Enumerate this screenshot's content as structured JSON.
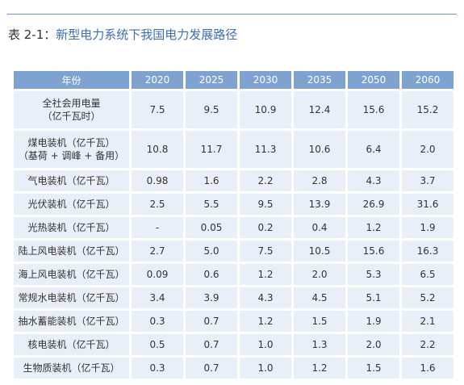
{
  "title": {
    "number": "表 2-1：",
    "text": "新型电力系统下我国电力发展路径"
  },
  "table": {
    "headers": [
      "年份",
      "2020",
      "2025",
      "2030",
      "2035",
      "2050",
      "2060"
    ],
    "rows": [
      {
        "label": [
          "全社会用电量",
          "（亿千瓦时）"
        ],
        "values": [
          "7.5",
          "9.5",
          "10.9",
          "12.4",
          "15.6",
          "15.2"
        ]
      },
      {
        "label": [
          "煤电装机（亿千瓦）",
          "（基荷 + 调峰 + 备用）"
        ],
        "values": [
          "10.8",
          "11.7",
          "11.3",
          "10.6",
          "6.4",
          "2.0"
        ]
      },
      {
        "label": [
          "气电装机（亿千瓦）"
        ],
        "values": [
          "0.98",
          "1.6",
          "2.2",
          "2.8",
          "4.3",
          "3.7"
        ]
      },
      {
        "label": [
          "光伏装机（亿千瓦）"
        ],
        "values": [
          "2.5",
          "5.5",
          "9.5",
          "13.9",
          "26.9",
          "31.6"
        ]
      },
      {
        "label": [
          "光热装机（亿千瓦）"
        ],
        "values": [
          "-",
          "0.05",
          "0.2",
          "0.4",
          "1.2",
          "1.9"
        ]
      },
      {
        "label": [
          "陆上风电装机（亿千瓦）"
        ],
        "values": [
          "2.7",
          "5.0",
          "7.5",
          "10.5",
          "15.6",
          "16.3"
        ]
      },
      {
        "label": [
          "海上风电装机（亿千瓦）"
        ],
        "values": [
          "0.09",
          "0.6",
          "1.2",
          "2.0",
          "5.3",
          "6.5"
        ]
      },
      {
        "label": [
          "常规水电装机（亿千瓦）"
        ],
        "values": [
          "3.4",
          "3.9",
          "4.3",
          "4.5",
          "5.1",
          "5.2"
        ]
      },
      {
        "label": [
          "抽水蓄能装机（亿千瓦）"
        ],
        "values": [
          "0.3",
          "0.7",
          "1.2",
          "1.5",
          "1.9",
          "2.1"
        ]
      },
      {
        "label": [
          "核电装机（亿千瓦）"
        ],
        "values": [
          "0.5",
          "0.7",
          "1.0",
          "1.3",
          "2.0",
          "2.2"
        ]
      },
      {
        "label": [
          "生物质装机（亿千瓦）"
        ],
        "values": [
          "0.3",
          "0.7",
          "1.0",
          "1.2",
          "1.5",
          "1.6"
        ]
      }
    ]
  },
  "colors": {
    "header_bg": "#7ea3d0",
    "cell_bg": "#e8eff8",
    "title_accent": "#3d6eb5",
    "rule": "#6a8fc5"
  }
}
